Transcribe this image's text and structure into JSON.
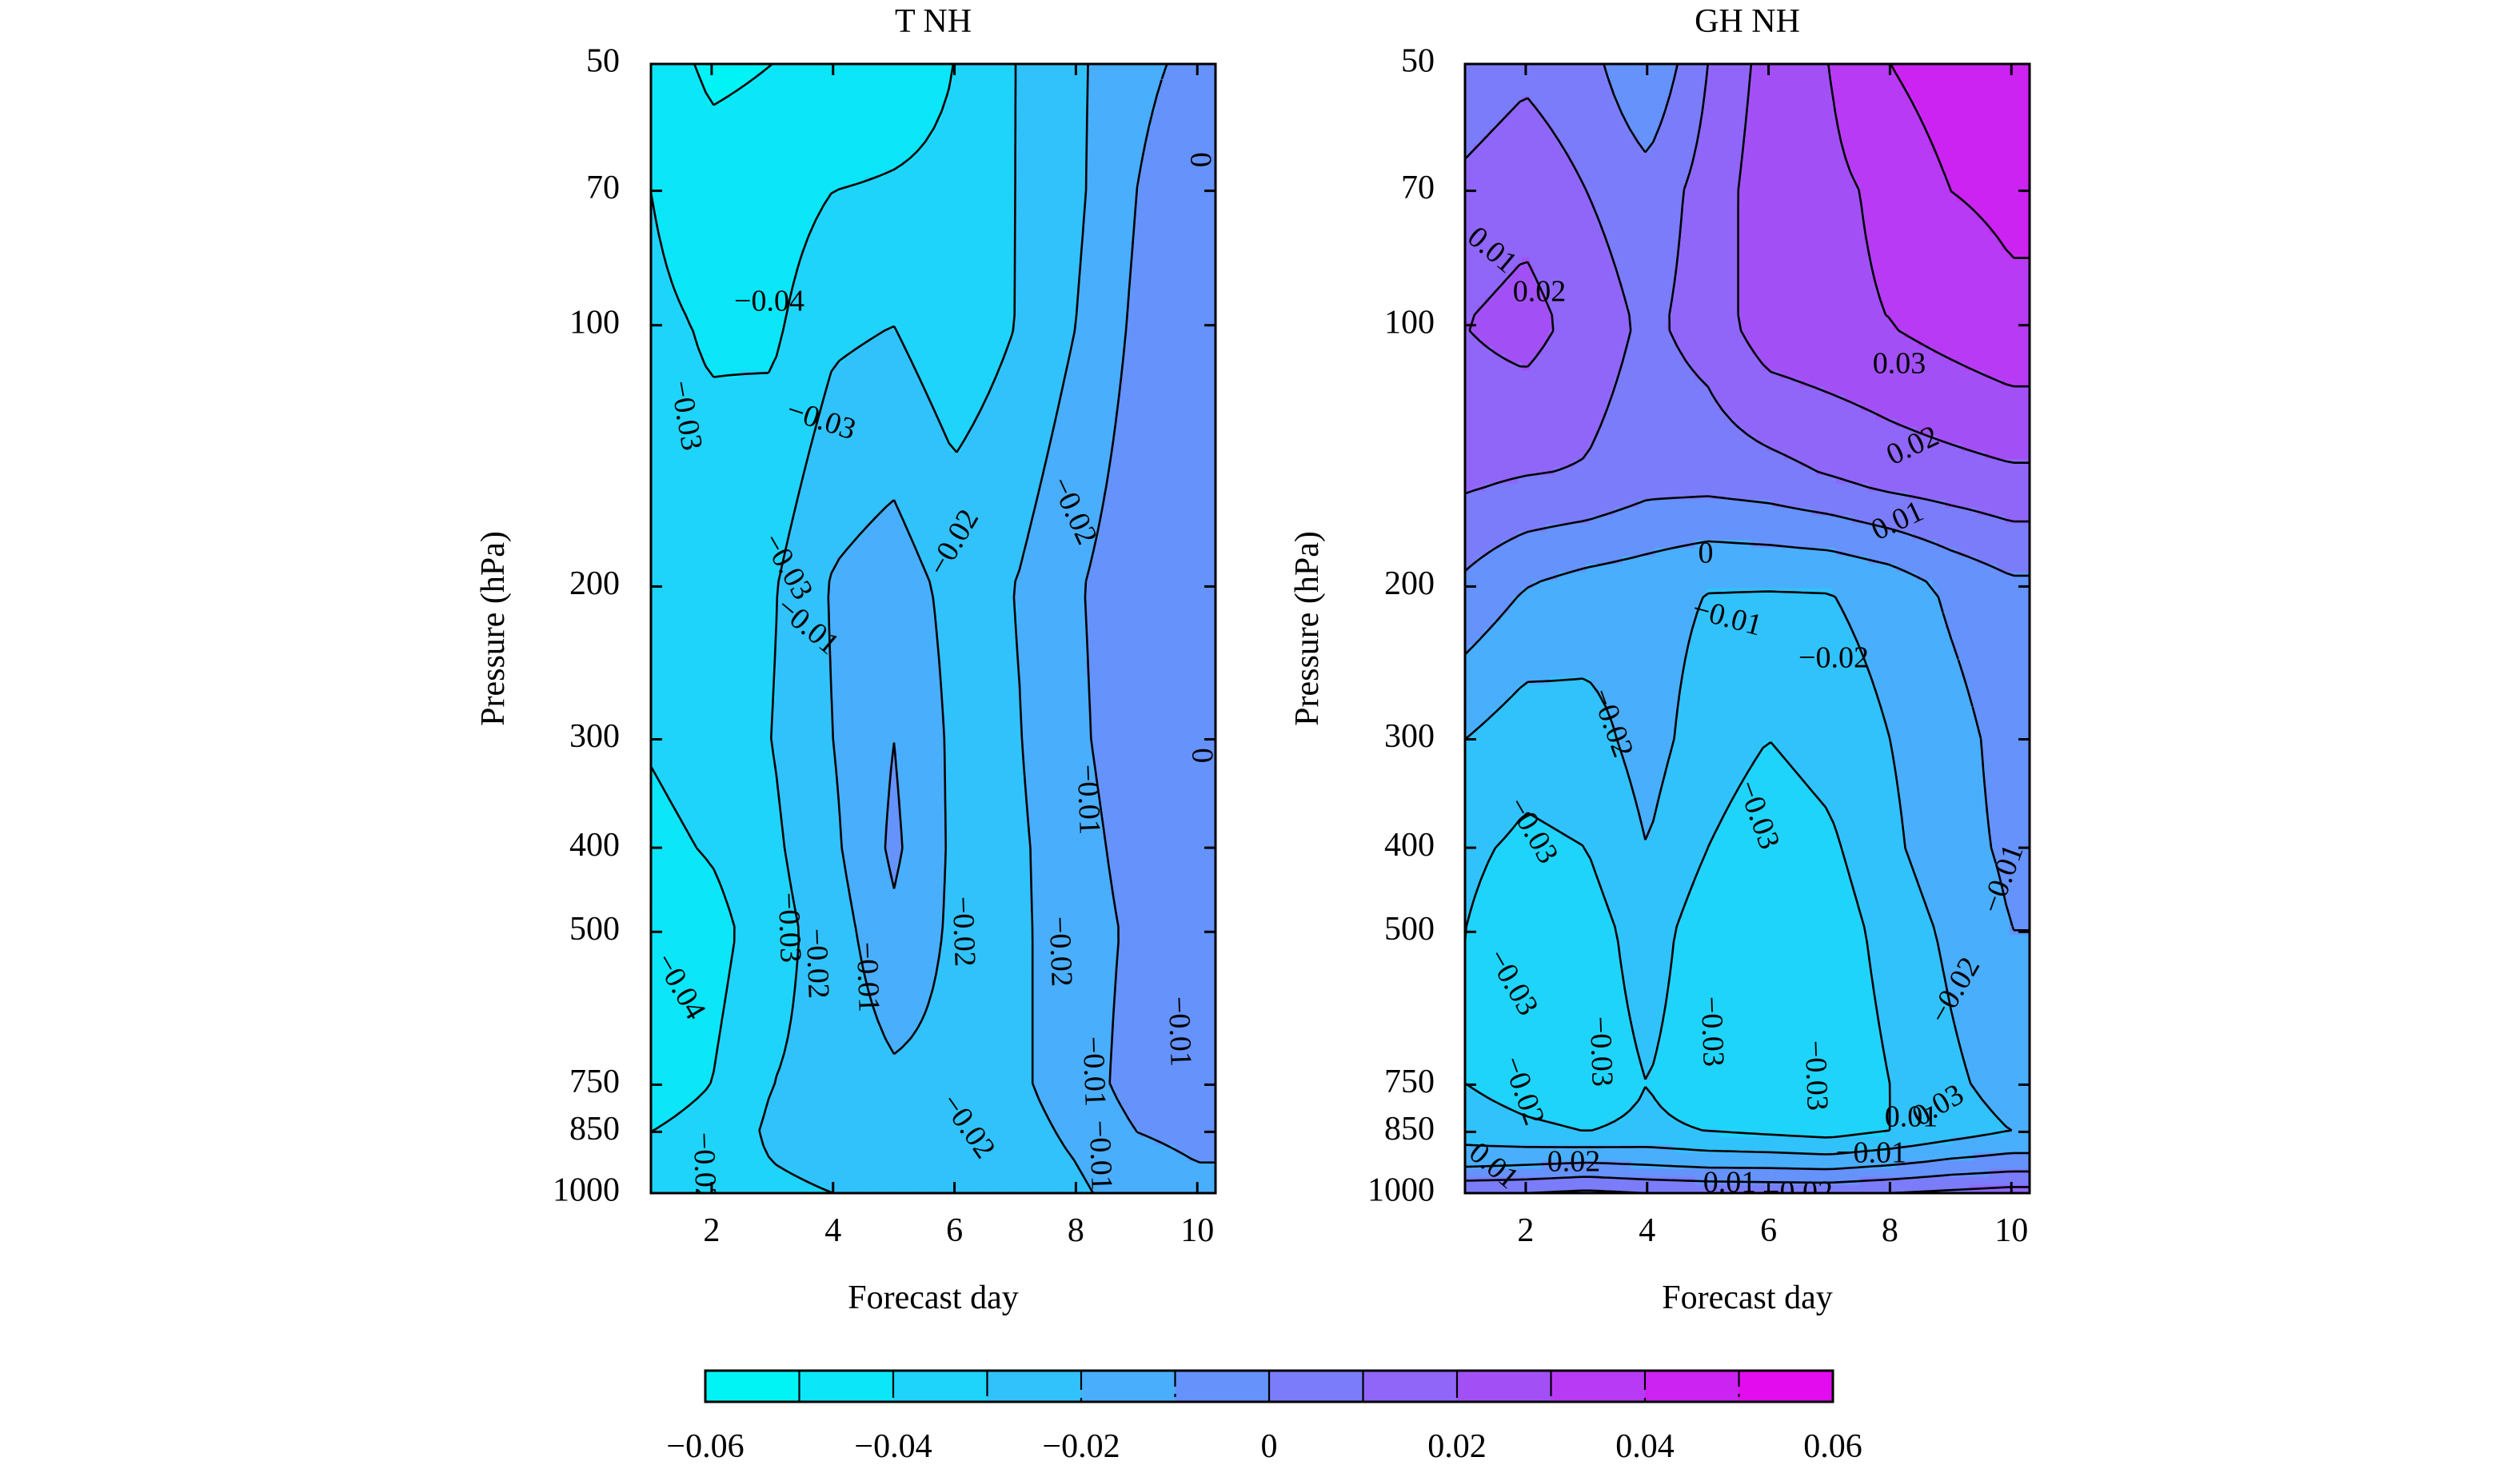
{
  "chart_data": [
    {
      "type": "contour",
      "title": "T NH",
      "xlabel": "Forecast day",
      "ylabel": "Pressure (hPa)",
      "xlim": [
        1,
        10.3
      ],
      "x_ticks": [
        "2",
        "4",
        "6",
        "8",
        "10"
      ],
      "y_scale": "log",
      "y_reversed": true,
      "ylim": [
        1000,
        50
      ],
      "y_ticks": [
        "50",
        "70",
        "100",
        "200",
        "300",
        "400",
        "500",
        "750",
        "850",
        "1000"
      ],
      "x": [
        1,
        2,
        3,
        4,
        5,
        6,
        7,
        8,
        9,
        10,
        10.3
      ],
      "pressure_levels": [
        1000,
        850,
        750,
        500,
        400,
        300,
        200,
        100,
        70,
        50
      ],
      "values": [
        [
          -0.035,
          -0.034,
          -0.032,
          -0.03,
          -0.029,
          -0.028,
          -0.026,
          -0.022,
          -0.015,
          -0.012,
          -0.012
        ],
        [
          -0.04,
          -0.037,
          -0.028,
          -0.025,
          -0.024,
          -0.025,
          -0.024,
          -0.018,
          -0.01,
          -0.008,
          -0.008
        ],
        [
          -0.044,
          -0.04,
          -0.03,
          -0.027,
          -0.022,
          -0.023,
          -0.022,
          -0.015,
          -0.006,
          -0.004,
          -0.004
        ],
        [
          -0.046,
          -0.044,
          -0.034,
          -0.025,
          -0.012,
          -0.022,
          -0.022,
          -0.015,
          -0.008,
          -0.006,
          -0.006
        ],
        [
          -0.043,
          -0.039,
          -0.032,
          -0.022,
          -0.008,
          -0.022,
          -0.022,
          -0.014,
          -0.006,
          -0.004,
          -0.004
        ],
        [
          -0.039,
          -0.035,
          -0.03,
          -0.02,
          -0.01,
          -0.022,
          -0.021,
          -0.012,
          -0.004,
          -0.002,
          -0.002
        ],
        [
          -0.038,
          -0.036,
          -0.031,
          -0.019,
          -0.015,
          -0.023,
          -0.02,
          -0.011,
          -0.004,
          -0.001,
          -0.001
        ],
        [
          -0.038,
          -0.041,
          -0.042,
          -0.032,
          -0.03,
          -0.037,
          -0.03,
          -0.02,
          -0.008,
          -0.003,
          -0.003
        ],
        [
          -0.04,
          -0.046,
          -0.045,
          -0.04,
          -0.039,
          -0.038,
          -0.03,
          -0.022,
          -0.01,
          -0.004,
          -0.004
        ],
        [
          -0.045,
          -0.052,
          -0.05,
          -0.048,
          -0.045,
          -0.04,
          -0.03,
          -0.022,
          -0.012,
          -0.008,
          -0.008
        ]
      ],
      "contour_labels": [
        "−0.04",
        "−0.03",
        "−0.03",
        "−0.02",
        "−0.02",
        "−0.02",
        "−0.01",
        "−0.01",
        "−0.01",
        "0",
        "0",
        "−0.03",
        "−0.02",
        "−0.01",
        "−0.02",
        "−0.02",
        "−0.01",
        "−0.01",
        "−0.04",
        "−0.03",
        "−0.02"
      ],
      "colorbar": {
        "vmin": -0.06,
        "vmax": 0.06,
        "tick_labels": [
          "−0.06",
          "−0.04",
          "−0.02",
          "0",
          "0.02",
          "0.04",
          "0.06"
        ],
        "colors": [
          "#00f4f6",
          "#0be6f8",
          "#1fd4fa",
          "#31c2fb",
          "#49aefc",
          "#6592fb",
          "#7b7cf9",
          "#8f66f8",
          "#a250f6",
          "#b83af5",
          "#cc22f2",
          "#e30cee"
        ]
      }
    },
    {
      "type": "contour",
      "title": "GH NH",
      "xlabel": "Forecast day",
      "ylabel": "Pressure (hPa)",
      "xlim": [
        1,
        10.3
      ],
      "x_ticks": [
        "2",
        "4",
        "6",
        "8",
        "10"
      ],
      "y_scale": "log",
      "y_reversed": true,
      "ylim": [
        1000,
        50
      ],
      "y_ticks": [
        "50",
        "70",
        "100",
        "200",
        "300",
        "400",
        "500",
        "750",
        "850",
        "1000"
      ],
      "x": [
        1,
        2,
        3,
        4,
        5,
        6,
        7,
        8,
        9,
        10,
        10.3
      ],
      "pressure_levels": [
        1000,
        930,
        850,
        750,
        500,
        400,
        300,
        200,
        150,
        100,
        70,
        50
      ],
      "values": [
        [
          0.01,
          0.01,
          0.012,
          0.01,
          0.009,
          0.008,
          0.008,
          0.01,
          0.012,
          0.014,
          0.014
        ],
        [
          -0.012,
          -0.01,
          -0.008,
          -0.01,
          -0.012,
          -0.012,
          -0.013,
          -0.01,
          -0.006,
          -0.004,
          -0.004
        ],
        [
          -0.025,
          -0.028,
          -0.03,
          -0.028,
          -0.03,
          -0.032,
          -0.034,
          -0.03,
          -0.025,
          -0.02,
          -0.02
        ],
        [
          -0.03,
          -0.034,
          -0.036,
          -0.03,
          -0.036,
          -0.04,
          -0.038,
          -0.03,
          -0.022,
          -0.016,
          -0.016
        ],
        [
          -0.03,
          -0.036,
          -0.035,
          -0.025,
          -0.036,
          -0.04,
          -0.036,
          -0.026,
          -0.018,
          -0.01,
          -0.01
        ],
        [
          -0.028,
          -0.032,
          -0.03,
          -0.02,
          -0.03,
          -0.036,
          -0.032,
          -0.022,
          -0.014,
          -0.008,
          -0.008
        ],
        [
          -0.02,
          -0.026,
          -0.024,
          -0.016,
          -0.025,
          -0.03,
          -0.026,
          -0.02,
          -0.014,
          -0.006,
          -0.006
        ],
        [
          -0.002,
          -0.01,
          -0.014,
          -0.016,
          -0.02,
          -0.02,
          -0.02,
          -0.016,
          -0.008,
          -0.002,
          -0.002
        ],
        [
          0.012,
          0.01,
          0.009,
          0.004,
          0.004,
          0.006,
          0.01,
          0.014,
          0.016,
          0.018,
          0.018
        ],
        [
          0.02,
          0.024,
          0.016,
          0.008,
          0.014,
          0.026,
          0.028,
          0.03,
          0.034,
          0.038,
          0.038
        ],
        [
          0.012,
          0.016,
          0.01,
          0.004,
          0.014,
          0.026,
          0.028,
          0.032,
          0.04,
          0.042,
          0.042
        ],
        [
          0.004,
          0.008,
          0.004,
          -0.01,
          0.01,
          0.024,
          0.03,
          0.04,
          0.046,
          0.048,
          0.048
        ]
      ],
      "contour_labels": [
        "0.01",
        "0.02",
        "0.03",
        "0.02",
        "0.01",
        "0",
        "−0.01",
        "−0.02",
        "−0.02",
        "−0.03",
        "−0.03",
        "−0.01",
        "−0.03",
        "−0.03",
        "−0.03",
        "−0.03",
        "−0.02",
        "−0.02",
        "0.03",
        "0.01",
        "0.02",
        "−0.01",
        "0.01",
        "−0.02",
        "0.01"
      ]
    }
  ]
}
